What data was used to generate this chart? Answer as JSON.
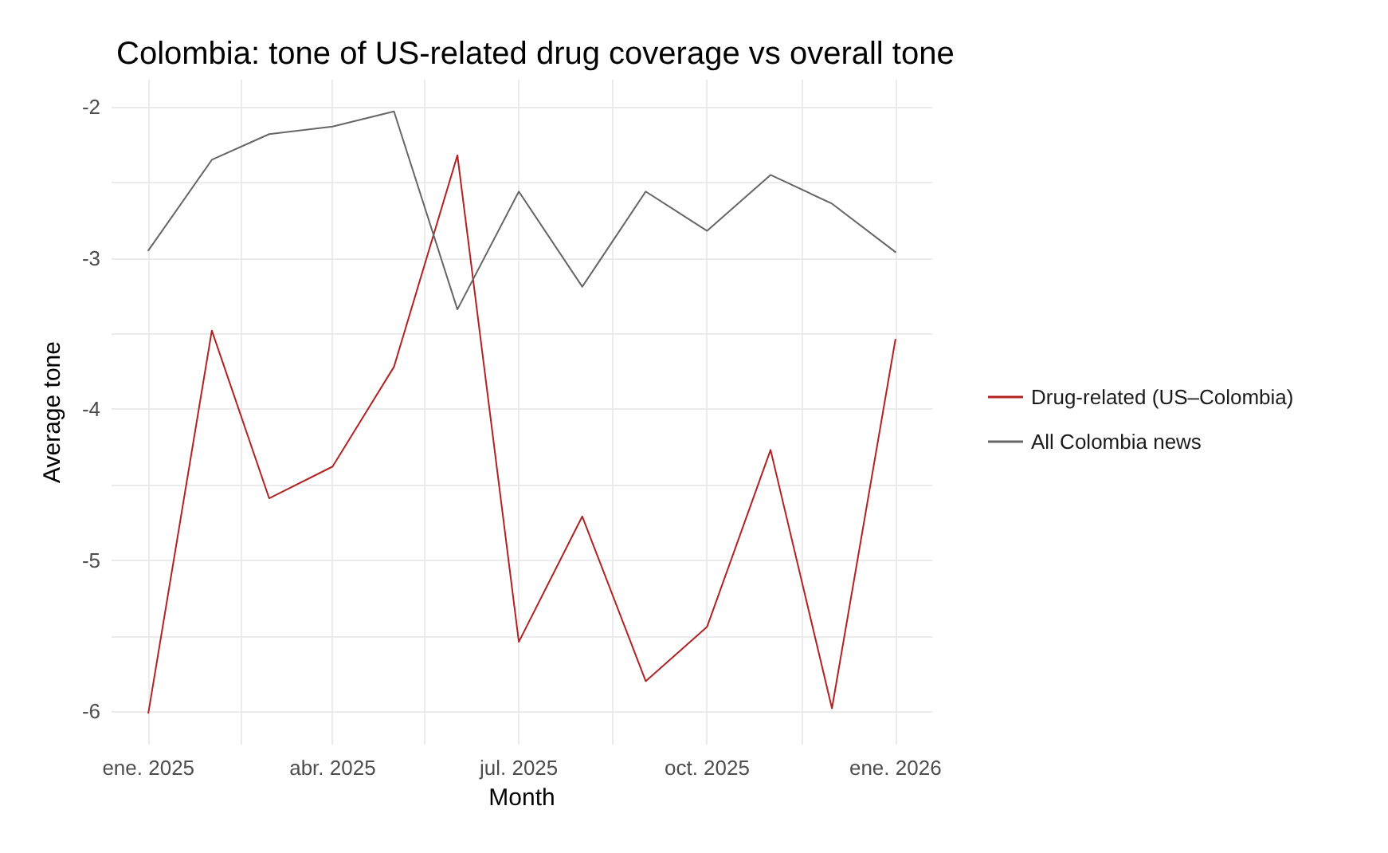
{
  "chart_data": {
    "type": "line",
    "title": "Colombia: tone of US-related drug coverage vs overall tone",
    "xlabel": "Month",
    "ylabel": "Average tone",
    "x": [
      "2025-01",
      "2025-02",
      "2025-03",
      "2025-04",
      "2025-05",
      "2025-06",
      "2025-07",
      "2025-08",
      "2025-09",
      "2025-10",
      "2025-11",
      "2025-12",
      "2026-01"
    ],
    "series": [
      {
        "name": "Drug-related (US–Colombia)",
        "color": "#b22222",
        "values": [
          -6.01,
          -3.48,
          -4.59,
          -4.38,
          -3.72,
          -2.32,
          -5.54,
          -4.71,
          -5.8,
          -5.44,
          -4.27,
          -5.98,
          -3.54
        ]
      },
      {
        "name": "All Colombia news",
        "color": "#666666",
        "values": [
          -2.95,
          -2.35,
          -2.18,
          -2.13,
          -2.03,
          -3.34,
          -2.56,
          -3.19,
          -2.56,
          -2.82,
          -2.45,
          -2.64,
          -2.96
        ]
      }
    ],
    "xlim": [
      "2024-12-14",
      "2026-01-19"
    ],
    "xticks": [
      {
        "value": "2025-01",
        "label": "ene. 2025"
      },
      {
        "value": "2025-02-15",
        "label": null
      },
      {
        "value": "2025-04",
        "label": "abr. 2025"
      },
      {
        "value": "2025-05-16",
        "label": null
      },
      {
        "value": "2025-07",
        "label": "jul. 2025"
      },
      {
        "value": "2025-08-16",
        "label": null
      },
      {
        "value": "2025-10",
        "label": "oct. 2025"
      },
      {
        "value": "2025-11-16",
        "label": null
      },
      {
        "value": "2026-01",
        "label": "ene. 2026"
      }
    ],
    "ylim": [
      -6.22,
      -1.82
    ],
    "yticks": [
      -6,
      {
        "value": -5.5,
        "label": null
      },
      -5,
      {
        "value": -4.5,
        "label": null
      },
      -4,
      {
        "value": -3.5,
        "label": null
      },
      -3,
      {
        "value": -2.5,
        "label": null
      },
      -2
    ],
    "grid": true,
    "legend": "right",
    "marker": "none",
    "line_style": "solid"
  }
}
